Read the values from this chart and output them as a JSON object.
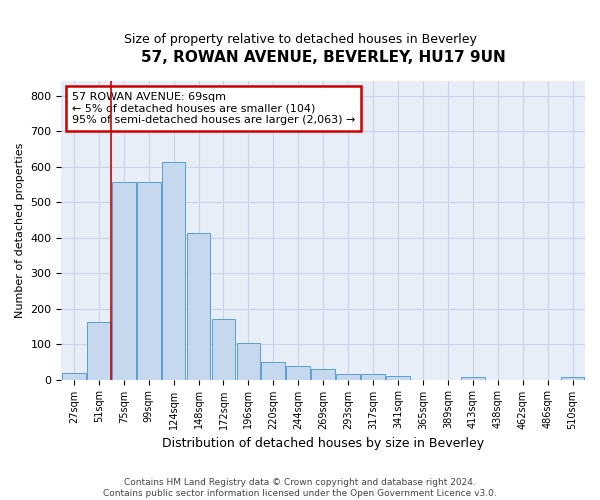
{
  "title": "57, ROWAN AVENUE, BEVERLEY, HU17 9UN",
  "subtitle": "Size of property relative to detached houses in Beverley",
  "xlabel": "Distribution of detached houses by size in Beverley",
  "ylabel": "Number of detached properties",
  "footer_line1": "Contains HM Land Registry data © Crown copyright and database right 2024.",
  "footer_line2": "Contains public sector information licensed under the Open Government Licence v3.0.",
  "bin_labels": [
    "27sqm",
    "51sqm",
    "75sqm",
    "99sqm",
    "124sqm",
    "148sqm",
    "172sqm",
    "196sqm",
    "220sqm",
    "244sqm",
    "269sqm",
    "293sqm",
    "317sqm",
    "341sqm",
    "365sqm",
    "389sqm",
    "413sqm",
    "438sqm",
    "462sqm",
    "486sqm",
    "510sqm"
  ],
  "bar_values": [
    18,
    163,
    558,
    558,
    613,
    413,
    170,
    103,
    50,
    38,
    30,
    15,
    15,
    10,
    0,
    0,
    8,
    0,
    0,
    0,
    7
  ],
  "bar_color": "#c5d8ed",
  "bar_edge_color": "#5a9fd4",
  "annotation_text": "57 ROWAN AVENUE: 69sqm\n← 5% of detached houses are smaller (104)\n95% of semi-detached houses are larger (2,063) →",
  "annotation_box_color": "#cc0000",
  "vline_x": 1.5,
  "vline_color": "#cc0000",
  "ylim": [
    0,
    840
  ],
  "yticks": [
    0,
    100,
    200,
    300,
    400,
    500,
    600,
    700,
    800
  ],
  "grid_color": "#c8d4e8",
  "plot_bg_color": "#e8eef8",
  "title_fontsize": 11,
  "subtitle_fontsize": 9,
  "ylabel_fontsize": 8,
  "xlabel_fontsize": 9,
  "footer_fontsize": 6.5
}
